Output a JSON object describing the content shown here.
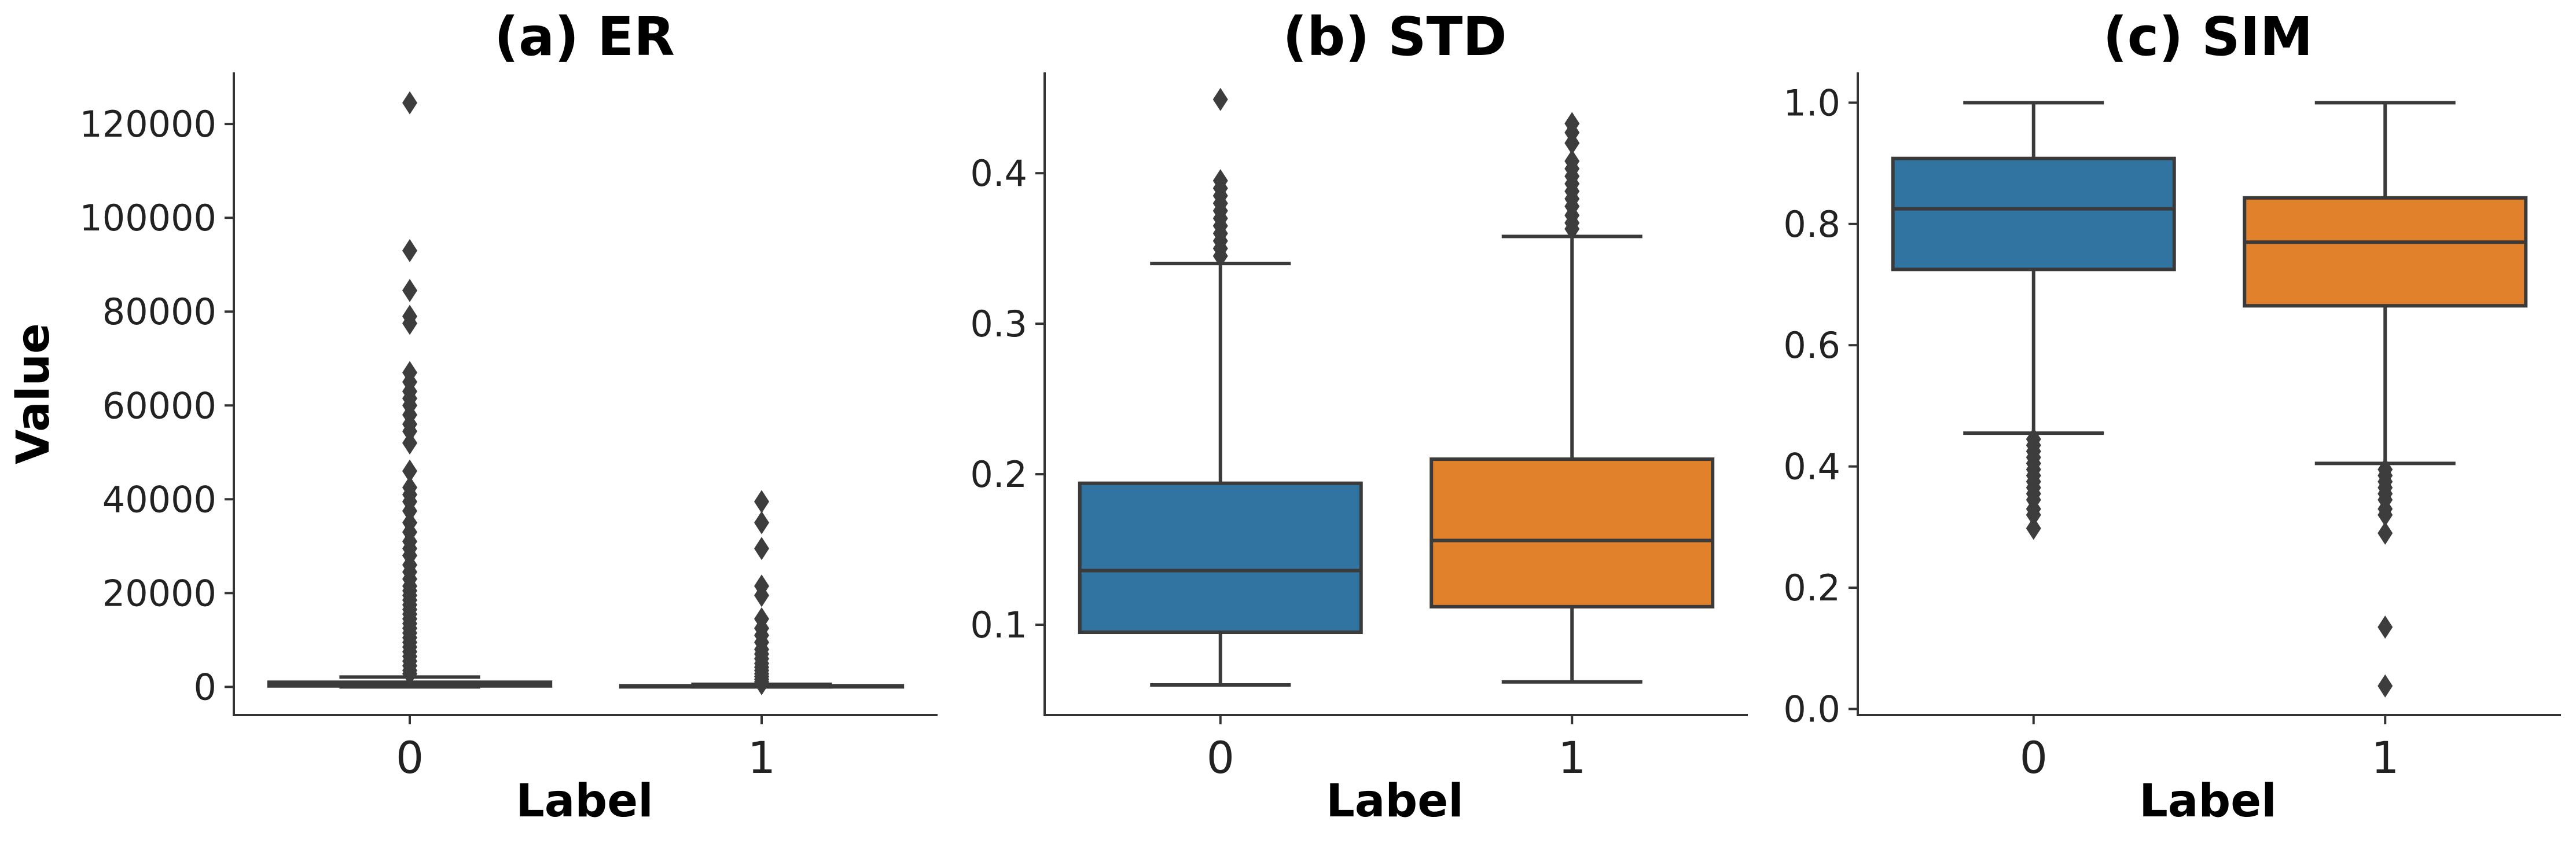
{
  "chart_data": [
    {
      "type": "box",
      "title": "(a) ER",
      "xlabel": "Label",
      "ylabel": "Value",
      "ylim": [
        -6000,
        131000
      ],
      "yticks": [
        0,
        20000,
        40000,
        60000,
        80000,
        100000,
        120000
      ],
      "ytick_labels": [
        "0",
        "20000",
        "40000",
        "60000",
        "80000",
        "100000",
        "120000"
      ],
      "categories": [
        "0",
        "1"
      ],
      "colors": [
        "#3274a1",
        "#e1812c"
      ],
      "boxes": [
        {
          "label": "0",
          "q1": 200,
          "median": 500,
          "q3": 1000,
          "whisker_low": 0,
          "whisker_high": 2100,
          "fliers": [
            124500,
            93000,
            84500,
            79000,
            77500,
            67000,
            65000,
            63000,
            61500,
            60000,
            58000,
            56000,
            54500,
            52000,
            46000,
            42500,
            41000,
            39500,
            37500,
            35000,
            33000,
            31000,
            29500,
            28000,
            26000,
            24500,
            23000,
            21500,
            20500,
            19500,
            18500,
            17500,
            16500,
            15500,
            14500,
            13500,
            12500,
            11500,
            10500,
            9500,
            8500,
            7500,
            6500,
            5500,
            4500,
            3500,
            2800
          ]
        },
        {
          "label": "1",
          "q1": 30,
          "median": 100,
          "q3": 250,
          "whisker_low": 0,
          "whisker_high": 550,
          "fliers": [
            39500,
            35000,
            29500,
            21500,
            19500,
            14500,
            12500,
            11000,
            9500,
            8000,
            7000,
            6000,
            5000,
            4200,
            3500,
            2800,
            2200,
            1600,
            1100,
            700
          ]
        }
      ]
    },
    {
      "type": "box",
      "title": "(b) STD",
      "xlabel": "Label",
      "ylim": [
        0.04,
        0.467
      ],
      "yticks": [
        0.1,
        0.2,
        0.3,
        0.4
      ],
      "ytick_labels": [
        "0.1",
        "0.2",
        "0.3",
        "0.4"
      ],
      "categories": [
        "0",
        "1"
      ],
      "colors": [
        "#3274a1",
        "#e1812c"
      ],
      "boxes": [
        {
          "label": "0",
          "q1": 0.095,
          "median": 0.136,
          "q3": 0.194,
          "whisker_low": 0.06,
          "whisker_high": 0.34,
          "fliers": [
            0.449,
            0.395,
            0.39,
            0.385,
            0.38,
            0.375,
            0.37,
            0.365,
            0.36,
            0.355,
            0.35,
            0.345
          ]
        },
        {
          "label": "1",
          "q1": 0.112,
          "median": 0.156,
          "q3": 0.21,
          "whisker_low": 0.062,
          "whisker_high": 0.358,
          "fliers": [
            0.433,
            0.427,
            0.42,
            0.408,
            0.403,
            0.398,
            0.393,
            0.388,
            0.383,
            0.378,
            0.372,
            0.367,
            0.363
          ]
        }
      ]
    },
    {
      "type": "box",
      "title": "(c) SIM",
      "xlabel": "Label",
      "ylim": [
        -0.01,
        1.05
      ],
      "yticks": [
        0.0,
        0.2,
        0.4,
        0.6,
        0.8,
        1.0
      ],
      "ytick_labels": [
        "0.0",
        "0.2",
        "0.4",
        "0.6",
        "0.8",
        "1.0"
      ],
      "categories": [
        "0",
        "1"
      ],
      "colors": [
        "#3274a1",
        "#e1812c"
      ],
      "boxes": [
        {
          "label": "0",
          "q1": 0.725,
          "median": 0.825,
          "q3": 0.908,
          "whisker_low": 0.455,
          "whisker_high": 1.0,
          "fliers": [
            0.445,
            0.435,
            0.425,
            0.415,
            0.405,
            0.395,
            0.385,
            0.375,
            0.365,
            0.355,
            0.345,
            0.33,
            0.32,
            0.298
          ]
        },
        {
          "label": "1",
          "q1": 0.665,
          "median": 0.77,
          "q3": 0.843,
          "whisker_low": 0.405,
          "whisker_high": 1.0,
          "fliers": [
            0.395,
            0.385,
            0.375,
            0.365,
            0.355,
            0.345,
            0.33,
            0.32,
            0.29,
            0.135,
            0.038
          ]
        }
      ]
    }
  ]
}
